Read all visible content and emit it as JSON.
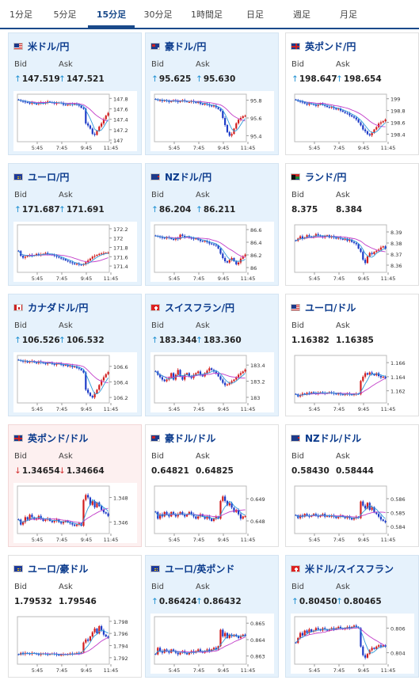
{
  "tabs": [
    {
      "label": "1分足",
      "active": false
    },
    {
      "label": "5分足",
      "active": false
    },
    {
      "label": "15分足",
      "active": true
    },
    {
      "label": "30分足",
      "active": false
    },
    {
      "label": "1時間足",
      "active": false
    },
    {
      "label": "日足",
      "active": false
    },
    {
      "label": "週足",
      "active": false
    },
    {
      "label": "月足",
      "active": false
    }
  ],
  "labels": {
    "bid": "Bid",
    "ask": "Ask"
  },
  "colors": {
    "up": "#d21e1e",
    "down": "#1e3cc8",
    "ma_short": "#2f9ad9",
    "ma_long": "#c23ec9",
    "arrow_up": "#1a8dd0",
    "arrow_down": "#d23030"
  },
  "x_ticks": [
    "5:45",
    "7:45",
    "9:45",
    "11:45"
  ],
  "cards": [
    {
      "pair": "米ドル/円",
      "flag": "flag-us",
      "bg": "blue",
      "direction": "up",
      "bid": "147.519",
      "ask": "147.521",
      "y_ticks": [
        "147.8",
        "147.6",
        "147.4",
        "147.2",
        "147"
      ],
      "ylim": [
        147.0,
        147.85
      ],
      "closes": [
        147.77,
        147.75,
        147.74,
        147.73,
        147.72,
        147.7,
        147.72,
        147.7,
        147.69,
        147.71,
        147.72,
        147.7,
        147.72,
        147.74,
        147.73,
        147.72,
        147.7,
        147.71,
        147.72,
        147.71,
        147.68,
        147.67,
        147.68,
        147.69,
        147.68,
        147.7,
        147.68,
        147.66,
        147.62,
        147.6,
        147.32,
        147.28,
        147.22,
        147.12,
        147.1,
        147.18,
        147.26,
        147.32,
        147.4,
        147.47,
        147.52
      ]
    },
    {
      "pair": "豪ドル/円",
      "flag": "flag-au",
      "bg": "blue",
      "direction": "up",
      "bid": "95.625",
      "ask": "95.630",
      "y_ticks": [
        "95.8",
        "95.6",
        "95.4"
      ],
      "ylim": [
        95.35,
        95.85
      ],
      "closes": [
        95.81,
        95.8,
        95.8,
        95.79,
        95.8,
        95.79,
        95.78,
        95.79,
        95.8,
        95.79,
        95.78,
        95.79,
        95.8,
        95.79,
        95.78,
        95.78,
        95.79,
        95.78,
        95.77,
        95.78,
        95.76,
        95.75,
        95.76,
        95.75,
        95.74,
        95.73,
        95.74,
        95.72,
        95.7,
        95.68,
        95.6,
        95.52,
        95.44,
        95.4,
        95.42,
        95.48,
        95.54,
        95.58,
        95.6,
        95.62,
        95.625
      ]
    },
    {
      "pair": "英ポンド/円",
      "flag": "flag-gb",
      "bg": "white",
      "direction": "up",
      "bid": "198.647",
      "ask": "198.654",
      "y_ticks": [
        "199",
        "198.8",
        "198.6",
        "198.4"
      ],
      "ylim": [
        198.3,
        199.05
      ],
      "closes": [
        198.98,
        198.96,
        198.95,
        198.94,
        198.92,
        198.9,
        198.92,
        198.91,
        198.9,
        198.88,
        198.9,
        198.92,
        198.9,
        198.88,
        198.86,
        198.85,
        198.86,
        198.84,
        198.82,
        198.83,
        198.8,
        198.78,
        198.76,
        198.75,
        198.72,
        198.7,
        198.68,
        198.65,
        198.6,
        198.55,
        198.48,
        198.45,
        198.4,
        198.38,
        198.42,
        198.48,
        198.52,
        198.58,
        198.6,
        198.62,
        198.647
      ]
    },
    {
      "pair": "ユーロ/円",
      "flag": "flag-eu",
      "bg": "blue",
      "direction": "up",
      "bid": "171.687",
      "ask": "171.691",
      "y_ticks": [
        "172.2",
        "172",
        "171.8",
        "171.6",
        "171.4"
      ],
      "ylim": [
        171.3,
        172.25
      ],
      "closes": [
        171.72,
        171.62,
        171.58,
        171.6,
        171.62,
        171.64,
        171.62,
        171.63,
        171.66,
        171.64,
        171.65,
        171.66,
        171.68,
        171.66,
        171.65,
        171.64,
        171.62,
        171.6,
        171.58,
        171.56,
        171.55,
        171.52,
        171.5,
        171.48,
        171.46,
        171.44,
        171.45,
        171.43,
        171.42,
        171.44,
        171.48,
        171.52,
        171.56,
        171.6,
        171.62,
        171.64,
        171.66,
        171.67,
        171.68,
        171.685,
        171.687
      ]
    },
    {
      "pair": "NZドル/円",
      "flag": "flag-nz",
      "bg": "blue",
      "direction": "up",
      "bid": "86.204",
      "ask": "86.211",
      "y_ticks": [
        "86.6",
        "86.4",
        "86.2",
        "86"
      ],
      "ylim": [
        85.95,
        86.65
      ],
      "closes": [
        86.5,
        86.49,
        86.48,
        86.47,
        86.46,
        86.48,
        86.47,
        86.45,
        86.44,
        86.46,
        86.45,
        86.52,
        86.5,
        86.48,
        86.49,
        86.47,
        86.46,
        86.45,
        86.46,
        86.44,
        86.42,
        86.41,
        86.42,
        86.4,
        86.38,
        86.37,
        86.36,
        86.35,
        86.3,
        86.22,
        86.15,
        86.1,
        86.08,
        86.12,
        86.15,
        86.1,
        86.05,
        86.08,
        86.14,
        86.18,
        86.204
      ]
    },
    {
      "pair": "ランド/円",
      "flag": "flag-za",
      "bg": "white",
      "direction": "none",
      "bid": "8.375",
      "ask": "8.384",
      "y_ticks": [
        "8.39",
        "8.38",
        "8.37",
        "8.36"
      ],
      "ylim": [
        8.355,
        8.395
      ],
      "closes": [
        8.382,
        8.384,
        8.386,
        8.384,
        8.385,
        8.387,
        8.386,
        8.385,
        8.386,
        8.388,
        8.387,
        8.386,
        8.385,
        8.386,
        8.387,
        8.385,
        8.386,
        8.385,
        8.384,
        8.385,
        8.384,
        8.383,
        8.384,
        8.382,
        8.383,
        8.381,
        8.38,
        8.379,
        8.375,
        8.372,
        8.365,
        8.362,
        8.368,
        8.371,
        8.37,
        8.372,
        8.373,
        8.374,
        8.376,
        8.377,
        8.375
      ]
    },
    {
      "pair": "カナダドル/円",
      "flag": "flag-ca",
      "bg": "blue",
      "direction": "up",
      "bid": "106.526",
      "ask": "106.532",
      "y_ticks": [
        "106.6",
        "106.4",
        "106.2"
      ],
      "ylim": [
        106.15,
        106.72
      ],
      "closes": [
        106.68,
        106.67,
        106.66,
        106.67,
        106.65,
        106.66,
        106.67,
        106.65,
        106.64,
        106.66,
        106.65,
        106.64,
        106.63,
        106.64,
        106.65,
        106.63,
        106.62,
        106.63,
        106.64,
        106.62,
        106.61,
        106.62,
        106.6,
        106.61,
        106.59,
        106.6,
        106.58,
        106.57,
        106.55,
        106.52,
        106.3,
        106.26,
        106.22,
        106.2,
        106.25,
        106.3,
        106.36,
        106.42,
        106.46,
        106.5,
        106.526
      ]
    },
    {
      "pair": "スイスフラン/円",
      "flag": "flag-ch",
      "bg": "blue",
      "direction": "up",
      "bid": "183.344",
      "ask": "183.360",
      "y_ticks": [
        "183.4",
        "183.2",
        "183"
      ],
      "ylim": [
        182.95,
        183.5
      ],
      "closes": [
        183.32,
        183.28,
        183.25,
        183.22,
        183.2,
        183.22,
        183.24,
        183.3,
        183.22,
        183.28,
        183.34,
        183.26,
        183.22,
        183.28,
        183.3,
        183.26,
        183.24,
        183.28,
        183.3,
        183.32,
        183.28,
        183.26,
        183.3,
        183.33,
        183.36,
        183.34,
        183.32,
        183.3,
        183.26,
        183.22,
        183.18,
        183.15,
        183.16,
        183.18,
        183.2,
        183.22,
        183.25,
        183.28,
        183.3,
        183.32,
        183.344
      ]
    },
    {
      "pair": "ユーロ/ドル",
      "flag": "flag-us",
      "bg": "white",
      "direction": "none",
      "bid": "1.16382",
      "ask": "1.16385",
      "y_ticks": [
        "1.166",
        "1.164",
        "1.162"
      ],
      "ylim": [
        1.1605,
        1.1668
      ],
      "closes": [
        1.1615,
        1.1612,
        1.1614,
        1.1616,
        1.1615,
        1.1617,
        1.1616,
        1.1618,
        1.1617,
        1.1616,
        1.1617,
        1.1618,
        1.1617,
        1.1616,
        1.1617,
        1.1618,
        1.1617,
        1.1616,
        1.1615,
        1.1616,
        1.1615,
        1.1614,
        1.1615,
        1.1616,
        1.1615,
        1.1614,
        1.1615,
        1.1616,
        1.1615,
        1.1634,
        1.164,
        1.1645,
        1.1643,
        1.1646,
        1.1644,
        1.1642,
        1.1645,
        1.1641,
        1.1639,
        1.164,
        1.1638
      ]
    },
    {
      "pair": "英ポンド/ドル",
      "flag": "flag-gb",
      "bg": "pink",
      "direction": "down",
      "bid": "1.34654",
      "ask": "1.34664",
      "y_ticks": [
        "1.348",
        "1.346"
      ],
      "ylim": [
        1.3452,
        1.3488
      ],
      "closes": [
        1.3462,
        1.3458,
        1.346,
        1.3464,
        1.3462,
        1.3466,
        1.3464,
        1.3462,
        1.3463,
        1.3465,
        1.3463,
        1.3461,
        1.3462,
        1.3463,
        1.3461,
        1.346,
        1.3461,
        1.3462,
        1.346,
        1.3459,
        1.346,
        1.3461,
        1.346,
        1.3459,
        1.3458,
        1.3457,
        1.3458,
        1.3459,
        1.3457,
        1.3478,
        1.3482,
        1.348,
        1.3474,
        1.3477,
        1.3472,
        1.3476,
        1.3473,
        1.347,
        1.3468,
        1.3467,
        1.3465
      ]
    },
    {
      "pair": "豪ドル/ドル",
      "flag": "flag-au",
      "bg": "white",
      "direction": "none",
      "bid": "0.64821",
      "ask": "0.64825",
      "y_ticks": [
        "0.649",
        "0.648"
      ],
      "ylim": [
        0.6475,
        0.6495
      ],
      "closes": [
        0.6484,
        0.6481,
        0.6483,
        0.6482,
        0.6484,
        0.6483,
        0.6482,
        0.6484,
        0.6483,
        0.6482,
        0.6483,
        0.6484,
        0.6483,
        0.6482,
        0.6483,
        0.6484,
        0.6483,
        0.6482,
        0.6481,
        0.6482,
        0.6483,
        0.6482,
        0.6481,
        0.6482,
        0.6481,
        0.648,
        0.6481,
        0.6482,
        0.6481,
        0.6489,
        0.6491,
        0.6489,
        0.6487,
        0.6488,
        0.6486,
        0.6484,
        0.6485,
        0.6483,
        0.6481,
        0.6482,
        0.64821
      ]
    },
    {
      "pair": "NZドル/ドル",
      "flag": "flag-nz",
      "bg": "white",
      "direction": "none",
      "bid": "0.58430",
      "ask": "0.58444",
      "y_ticks": [
        "0.586",
        "0.585",
        "0.584"
      ],
      "ylim": [
        0.5836,
        0.5868
      ],
      "closes": [
        0.5848,
        0.5846,
        0.5848,
        0.5847,
        0.5849,
        0.5848,
        0.5847,
        0.5848,
        0.5849,
        0.5848,
        0.5847,
        0.5848,
        0.5849,
        0.5847,
        0.5848,
        0.5847,
        0.5848,
        0.5847,
        0.5846,
        0.5847,
        0.5848,
        0.5847,
        0.5846,
        0.5847,
        0.5846,
        0.5845,
        0.5846,
        0.5847,
        0.5846,
        0.5858,
        0.5855,
        0.5853,
        0.5857,
        0.5852,
        0.5854,
        0.585,
        0.5849,
        0.5847,
        0.5845,
        0.5844,
        0.5843
      ]
    },
    {
      "pair": "ユーロ/豪ドル",
      "flag": "flag-eu",
      "bg": "white",
      "direction": "none",
      "bid": "1.79532",
      "ask": "1.79546",
      "y_ticks": [
        "1.798",
        "1.796",
        "1.794",
        "1.792"
      ],
      "ylim": [
        1.7912,
        1.7985
      ],
      "closes": [
        1.7925,
        1.7928,
        1.7926,
        1.7928,
        1.7927,
        1.7926,
        1.7928,
        1.7927,
        1.7926,
        1.7925,
        1.7926,
        1.7927,
        1.7926,
        1.7925,
        1.7926,
        1.7927,
        1.7926,
        1.7925,
        1.7924,
        1.7925,
        1.7926,
        1.7925,
        1.7926,
        1.7927,
        1.7926,
        1.7927,
        1.7928,
        1.7927,
        1.7929,
        1.7945,
        1.795,
        1.7948,
        1.7955,
        1.7962,
        1.7968,
        1.796,
        1.7972,
        1.7965,
        1.7958,
        1.7955,
        1.7953
      ]
    },
    {
      "pair": "ユーロ/英ポンド",
      "flag": "flag-eu",
      "bg": "blue",
      "direction": "up",
      "bid": "0.86424",
      "ask": "0.86432",
      "y_ticks": [
        "0.865",
        "0.864",
        "0.863"
      ],
      "ylim": [
        0.8626,
        0.8653
      ],
      "closes": [
        0.8631,
        0.8635,
        0.8633,
        0.8632,
        0.8634,
        0.8633,
        0.8632,
        0.8634,
        0.8633,
        0.8632,
        0.8631,
        0.8632,
        0.8633,
        0.8632,
        0.8631,
        0.8632,
        0.8633,
        0.8632,
        0.8633,
        0.8634,
        0.8633,
        0.8632,
        0.8633,
        0.8634,
        0.8633,
        0.8634,
        0.8635,
        0.8634,
        0.8636,
        0.8646,
        0.8642,
        0.8644,
        0.8641,
        0.8643,
        0.8642,
        0.8643,
        0.8642,
        0.8641,
        0.8642,
        0.8643,
        0.86424
      ]
    },
    {
      "pair": "米ドル/スイスフラン",
      "flag": "flag-ch",
      "bg": "blue",
      "direction": "up",
      "bid": "0.80450",
      "ask": "0.80465",
      "y_ticks": [
        "0.806",
        "0.804"
      ],
      "ylim": [
        0.8032,
        0.8068
      ],
      "closes": [
        0.8048,
        0.8052,
        0.8056,
        0.8054,
        0.8058,
        0.8056,
        0.8059,
        0.8057,
        0.8058,
        0.806,
        0.8059,
        0.8058,
        0.806,
        0.8059,
        0.8058,
        0.8059,
        0.806,
        0.8059,
        0.806,
        0.8061,
        0.806,
        0.8059,
        0.806,
        0.8061,
        0.806,
        0.8061,
        0.8062,
        0.8061,
        0.806,
        0.8045,
        0.8038,
        0.8036,
        0.8039,
        0.8042,
        0.8044,
        0.8043,
        0.8045,
        0.8046,
        0.8045,
        0.8046,
        0.8045
      ]
    }
  ]
}
